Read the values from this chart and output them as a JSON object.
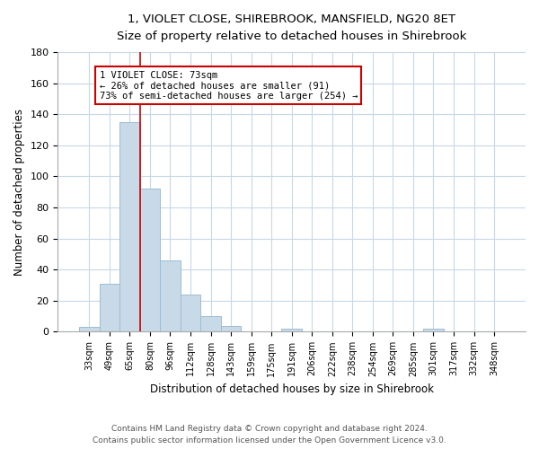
{
  "title": "1, VIOLET CLOSE, SHIREBROOK, MANSFIELD, NG20 8ET",
  "subtitle": "Size of property relative to detached houses in Shirebrook",
  "xlabel": "Distribution of detached houses by size in Shirebrook",
  "ylabel": "Number of detached properties",
  "bar_labels": [
    "33sqm",
    "49sqm",
    "65sqm",
    "80sqm",
    "96sqm",
    "112sqm",
    "128sqm",
    "143sqm",
    "159sqm",
    "175sqm",
    "191sqm",
    "206sqm",
    "222sqm",
    "238sqm",
    "254sqm",
    "269sqm",
    "285sqm",
    "301sqm",
    "317sqm",
    "332sqm",
    "348sqm"
  ],
  "bar_values": [
    3,
    31,
    135,
    92,
    46,
    24,
    10,
    4,
    0,
    0,
    2,
    0,
    0,
    0,
    0,
    0,
    0,
    2,
    0,
    0,
    0
  ],
  "bar_color": "#c8d9e8",
  "bar_edge_color": "#9dbdd4",
  "annotation_title": "1 VIOLET CLOSE: 73sqm",
  "annotation_line1": "← 26% of detached houses are smaller (91)",
  "annotation_line2": "73% of semi-detached houses are larger (254) →",
  "vline_color": "#cc0000",
  "ylim": [
    0,
    180
  ],
  "yticks": [
    0,
    20,
    40,
    60,
    80,
    100,
    120,
    140,
    160,
    180
  ],
  "footer_line1": "Contains HM Land Registry data © Crown copyright and database right 2024.",
  "footer_line2": "Contains public sector information licensed under the Open Government Licence v3.0.",
  "bg_color": "#ffffff",
  "grid_color": "#c8d8e8",
  "annotation_box_color": "#ffffff",
  "annotation_box_edge": "#cc0000"
}
